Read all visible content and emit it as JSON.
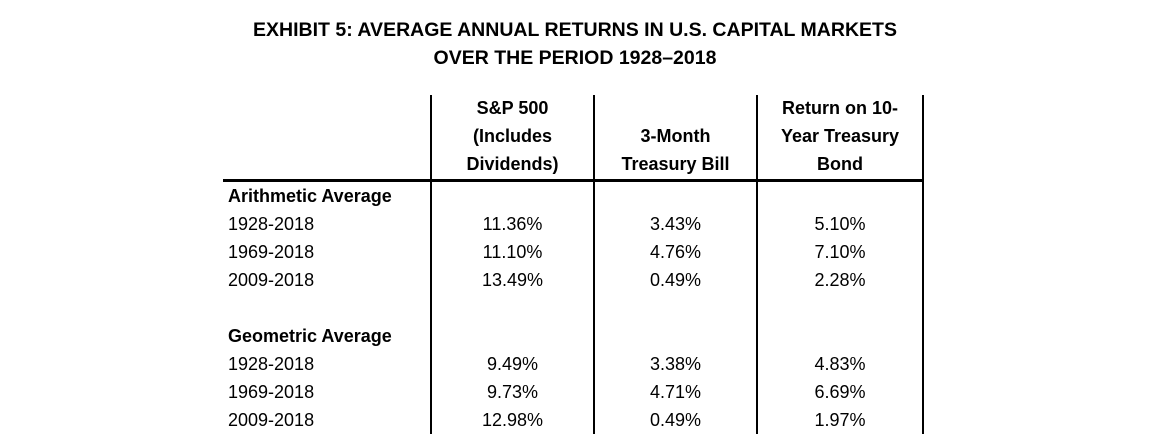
{
  "meta": {
    "background_color": "#ffffff",
    "text_color": "#000000",
    "line_color": "#000000"
  },
  "title": {
    "line1": "EXHIBIT 5: AVERAGE ANNUAL RETURNS IN U.S. CAPITAL MARKETS",
    "line2": "OVER THE PERIOD 1928–2018"
  },
  "table": {
    "headers": [
      {
        "name": "sp500",
        "lines": [
          "S&P 500",
          "(Includes",
          "Dividends)"
        ]
      },
      {
        "name": "tbill",
        "lines": [
          "3-Month",
          "Treasury Bill"
        ]
      },
      {
        "name": "tbond",
        "lines": [
          "Return on 10-",
          "Year Treasury",
          "Bond"
        ]
      }
    ],
    "sections": [
      {
        "label": "Arithmetic Average",
        "rows": [
          {
            "period": "1928-2018",
            "values": [
              "11.36%",
              "3.43%",
              "5.10%"
            ]
          },
          {
            "period": "1969-2018",
            "values": [
              "11.10%",
              "4.76%",
              "7.10%"
            ]
          },
          {
            "period": "2009-2018",
            "values": [
              "13.49%",
              "0.49%",
              "2.28%"
            ]
          }
        ]
      },
      {
        "label": "Geometric Average",
        "rows": [
          {
            "period": "1928-2018",
            "values": [
              "9.49%",
              "3.38%",
              "4.83%"
            ]
          },
          {
            "period": "1969-2018",
            "values": [
              "9.73%",
              "4.71%",
              "6.69%"
            ]
          },
          {
            "period": "2009-2018",
            "values": [
              "12.98%",
              "0.49%",
              "1.97%"
            ]
          }
        ]
      }
    ]
  },
  "chart_data": {
    "type": "table",
    "title": "EXHIBIT 5: AVERAGE ANNUAL RETURNS IN U.S. CAPITAL MARKETS OVER THE PERIOD 1928–2018",
    "columns": [
      "",
      "S&P 500 (Includes Dividends)",
      "3-Month Treasury Bill",
      "Return on 10-Year Treasury Bond"
    ],
    "rows": [
      [
        "Arithmetic Average",
        "",
        "",
        ""
      ],
      [
        "1928-2018",
        "11.36%",
        "3.43%",
        "5.10%"
      ],
      [
        "1969-2018",
        "11.10%",
        "4.76%",
        "7.10%"
      ],
      [
        "2009-2018",
        "13.49%",
        "0.49%",
        "2.28%"
      ],
      [
        "",
        "",
        "",
        ""
      ],
      [
        "Geometric Average",
        "",
        "",
        ""
      ],
      [
        "1928-2018",
        "9.49%",
        "3.38%",
        "4.83%"
      ],
      [
        "1969-2018",
        "9.73%",
        "4.71%",
        "6.69%"
      ],
      [
        "2009-2018",
        "12.98%",
        "0.49%",
        "1.97%"
      ]
    ]
  }
}
